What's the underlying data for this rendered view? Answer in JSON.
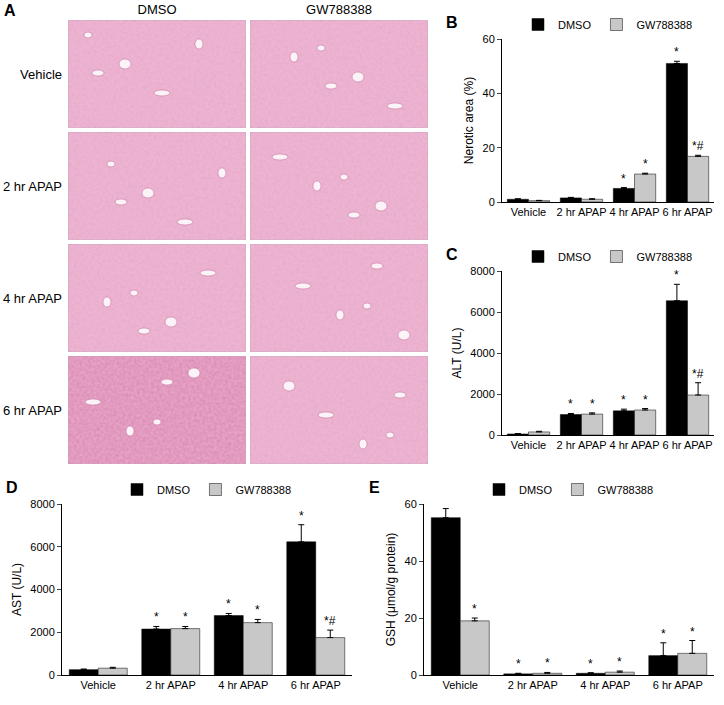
{
  "image_panel": {
    "label": "A",
    "columns": [
      "DMSO",
      "GW788388"
    ],
    "rows": [
      "Vehicle",
      "2 hr APAP",
      "4 hr APAP",
      "6 hr APAP"
    ]
  },
  "chart_data": [
    {
      "type": "bar",
      "label": "B",
      "y_label": "Nerotic area (%)",
      "categories": [
        "Vehicle",
        "2 hr APAP",
        "4 hr APAP",
        "6 hr APAP"
      ],
      "series": [
        {
          "name": "DMSO",
          "color": "#000000",
          "values": [
            1,
            1.5,
            5,
            51
          ],
          "errors": [
            0.2,
            0.2,
            0.3,
            0.8
          ],
          "marks": [
            null,
            null,
            "*",
            "*"
          ]
        },
        {
          "name": "GW788388",
          "color": "#c8c8c8",
          "values": [
            0.5,
            1,
            10.3,
            16.8
          ],
          "errors": [
            0.1,
            0.2,
            0.3,
            0.4
          ],
          "marks": [
            null,
            null,
            "*",
            "*#"
          ]
        }
      ],
      "ylim": [
        0,
        60
      ],
      "yticks": [
        0,
        20,
        40,
        60
      ],
      "legend": "top",
      "grid": false
    },
    {
      "type": "bar",
      "label": "C",
      "y_label": "ALT (U/L)",
      "categories": [
        "Vehicle",
        "2 hr APAP",
        "4 hr APAP",
        "6 hr APAP"
      ],
      "series": [
        {
          "name": "DMSO",
          "color": "#000000",
          "values": [
            50,
            1000,
            1180,
            6550
          ],
          "errors": [
            20,
            50,
            80,
            800
          ],
          "marks": [
            null,
            "*",
            "*",
            "*"
          ]
        },
        {
          "name": "GW788388",
          "color": "#c8c8c8",
          "values": [
            150,
            1020,
            1220,
            1950
          ],
          "errors": [
            30,
            60,
            70,
            600
          ],
          "marks": [
            null,
            "*",
            "*",
            "*#"
          ]
        }
      ],
      "ylim": [
        0,
        8000
      ],
      "yticks": [
        0,
        2000,
        4000,
        6000,
        8000
      ],
      "legend": "top",
      "grid": false
    },
    {
      "type": "bar",
      "label": "D",
      "y_label": "AST (U/L)",
      "categories": [
        "Vehicle",
        "2 hr APAP",
        "4 hr APAP",
        "6 hr APAP"
      ],
      "series": [
        {
          "name": "DMSO",
          "color": "#000000",
          "values": [
            250,
            2150,
            2780,
            6230
          ],
          "errors": [
            30,
            120,
            100,
            800
          ],
          "marks": [
            null,
            "*",
            "*",
            "*"
          ]
        },
        {
          "name": "GW788388",
          "color": "#c8c8c8",
          "values": [
            320,
            2170,
            2450,
            1750
          ],
          "errors": [
            40,
            100,
            150,
            350
          ],
          "marks": [
            null,
            "*",
            "*",
            "*#"
          ]
        }
      ],
      "ylim": [
        0,
        8000
      ],
      "yticks": [
        0,
        2000,
        4000,
        6000,
        8000
      ],
      "legend": "top",
      "grid": false
    },
    {
      "type": "bar",
      "label": "E",
      "y_label": "GSH (μmol/g protein)",
      "categories": [
        "Vehicle",
        "2 hr APAP",
        "4 hr APAP",
        "6 hr APAP"
      ],
      "series": [
        {
          "name": "DMSO",
          "color": "#000000",
          "values": [
            55.2,
            0.4,
            0.6,
            6.8
          ],
          "errors": [
            3.2,
            0.2,
            0.2,
            4.5
          ],
          "marks": [
            null,
            "*",
            "*",
            "*"
          ]
        },
        {
          "name": "GW788388",
          "color": "#c8c8c8",
          "values": [
            19,
            0.6,
            1.0,
            7.6
          ],
          "errors": [
            1,
            0.3,
            0.4,
            4.5
          ],
          "marks": [
            "*",
            "*",
            "*",
            "*"
          ]
        }
      ],
      "ylim": [
        0,
        60
      ],
      "yticks": [
        0,
        20,
        40,
        60
      ],
      "legend": "top",
      "grid": false
    }
  ]
}
